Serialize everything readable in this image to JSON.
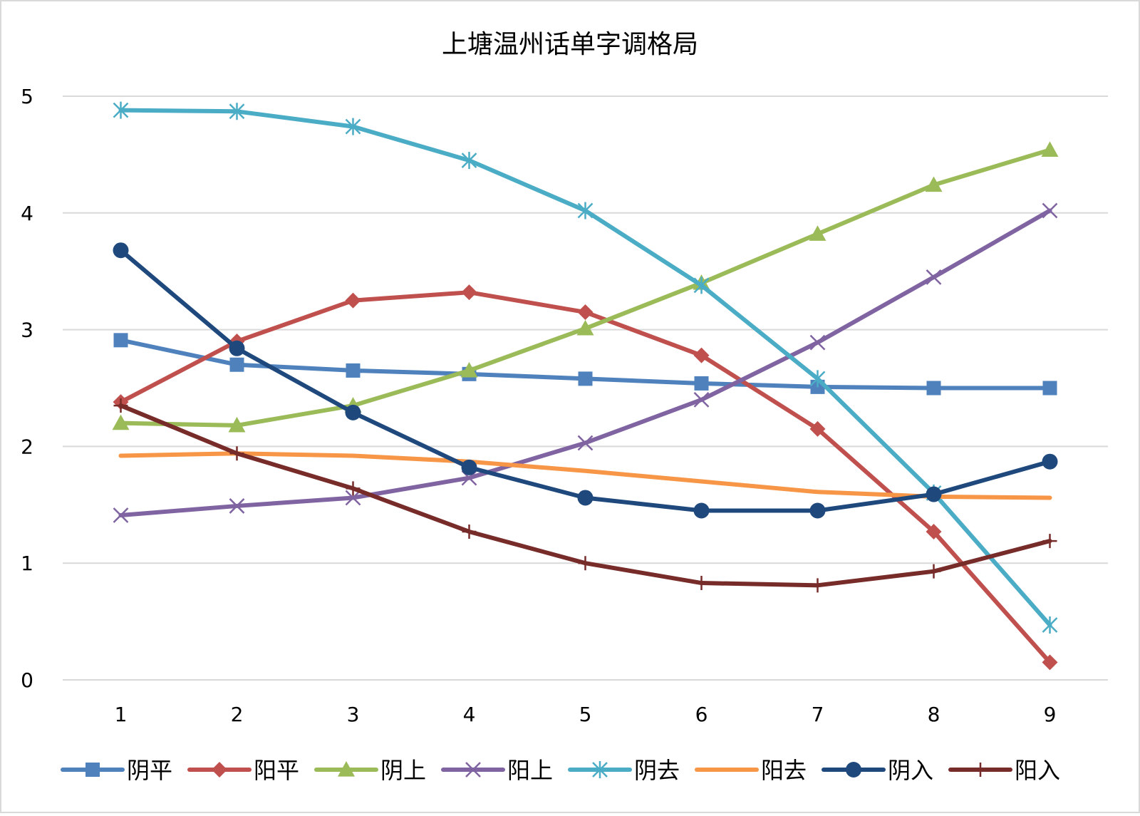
{
  "chart_data": {
    "type": "line",
    "title": "上塘温州话单字调格局",
    "xlabel": "",
    "ylabel": "",
    "x": [
      1,
      2,
      3,
      4,
      5,
      6,
      7,
      8,
      9
    ],
    "ylim": [
      0,
      5
    ],
    "yticks": [
      0,
      1,
      2,
      3,
      4,
      5
    ],
    "grid": true,
    "legend": "bottom",
    "series": [
      {
        "name": "阴平",
        "color": "#4f81bd",
        "marker": "square",
        "values": [
          2.91,
          2.7,
          2.65,
          2.62,
          2.58,
          2.54,
          2.51,
          2.5,
          2.5
        ]
      },
      {
        "name": "阳平",
        "color": "#c0504d",
        "marker": "diamond",
        "values": [
          2.38,
          2.9,
          3.25,
          3.32,
          3.15,
          2.78,
          2.15,
          1.27,
          0.15
        ]
      },
      {
        "name": "阴上",
        "color": "#9bbb59",
        "marker": "triangle",
        "values": [
          2.2,
          2.18,
          2.35,
          2.65,
          3.01,
          3.4,
          3.82,
          4.24,
          4.54
        ]
      },
      {
        "name": "阳上",
        "color": "#8064a2",
        "marker": "x",
        "values": [
          1.41,
          1.49,
          1.56,
          1.73,
          2.03,
          2.4,
          2.89,
          3.45,
          4.02
        ]
      },
      {
        "name": "阴去",
        "color": "#4bacc6",
        "marker": "star",
        "values": [
          4.88,
          4.87,
          4.74,
          4.45,
          4.02,
          3.38,
          2.58,
          1.6,
          0.47
        ]
      },
      {
        "name": "阳去",
        "color": "#f79646",
        "marker": "none",
        "values": [
          1.92,
          1.94,
          1.92,
          1.87,
          1.79,
          1.7,
          1.61,
          1.57,
          1.56
        ]
      },
      {
        "name": "阴入",
        "color": "#1f497d",
        "marker": "circle",
        "values": [
          3.68,
          2.84,
          2.29,
          1.82,
          1.56,
          1.45,
          1.45,
          1.59,
          1.87
        ]
      },
      {
        "name": "阳入",
        "color": "#772c2a",
        "marker": "plus",
        "values": [
          2.35,
          1.94,
          1.64,
          1.27,
          1.0,
          0.83,
          0.81,
          0.93,
          1.19
        ]
      }
    ]
  }
}
